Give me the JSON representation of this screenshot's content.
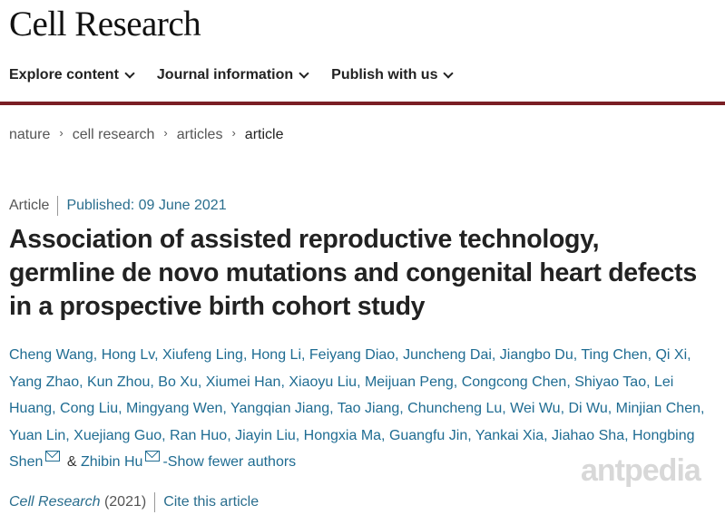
{
  "header": {
    "brand": "Cell Research"
  },
  "nav": [
    {
      "label": "Explore content"
    },
    {
      "label": "Journal information"
    },
    {
      "label": "Publish with us"
    }
  ],
  "breadcrumb": [
    {
      "label": "nature"
    },
    {
      "label": "cell research"
    },
    {
      "label": "articles"
    },
    {
      "label": "article"
    }
  ],
  "article": {
    "type": "Article",
    "published": "Published: 09 June 2021",
    "title": "Association of assisted reproductive technology, germline de novo mutations and congenital heart defects in a prospective birth cohort study",
    "authors": [
      "Cheng Wang",
      "Hong Lv",
      "Xiufeng Ling",
      "Hong Li",
      "Feiyang Diao",
      "Juncheng Dai",
      "Jiangbo Du",
      "Ting Chen",
      "Qi Xi",
      "Yang Zhao",
      "Kun Zhou",
      "Bo Xu",
      "Xiumei Han",
      "Xiaoyu Liu",
      "Meijuan Peng",
      "Congcong Chen",
      "Shiyao Tao",
      "Lei Huang",
      "Cong Liu",
      "Mingyang Wen",
      "Yangqian Jiang",
      "Tao Jiang",
      "Chuncheng Lu",
      "Wei Wu",
      "Di Wu",
      "Minjian Chen",
      "Yuan Lin",
      "Xuejiang Guo",
      "Ran Huo",
      "Jiayin Liu",
      "Hongxia Ma",
      "Guangfu Jin",
      "Yankai Xia",
      "Jiahao Sha"
    ],
    "corresponding": [
      "Hongbing Shen",
      "Zhibin Hu"
    ],
    "amp": "&",
    "show_fewer": "-Show fewer authors",
    "journal": "Cell Research",
    "year": "(2021)",
    "cite": "Cite this article"
  },
  "watermark": "antpedia",
  "colors": {
    "accent_rule": "#7a1f24",
    "link": "#1f6c92"
  }
}
